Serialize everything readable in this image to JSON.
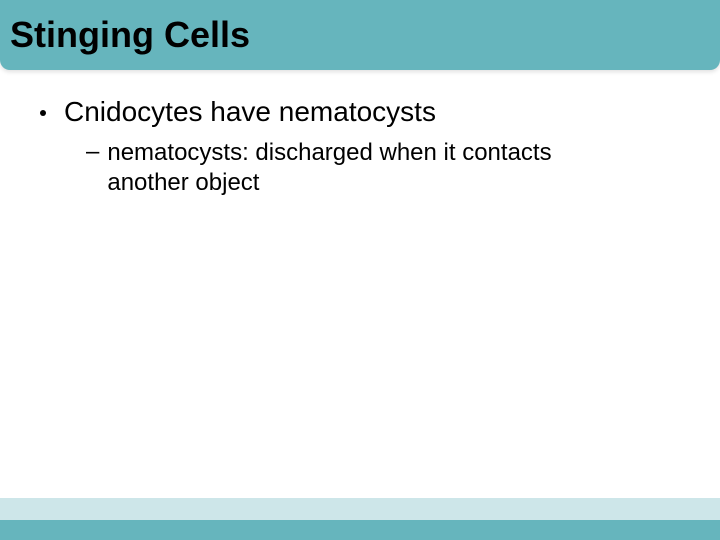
{
  "slide": {
    "title": "Stinging Cells",
    "title_fontsize": 36,
    "title_fontweight": "bold",
    "title_color": "#000000",
    "title_bar_color": "#66b5bd",
    "background_color": "#ffffff",
    "bullets": [
      {
        "level": 1,
        "text": "Cnidocytes have nematocysts",
        "fontsize": 28,
        "color": "#000000",
        "marker": "dot"
      },
      {
        "level": 2,
        "text": "nematocysts: discharged when it contacts another object",
        "fontsize": 24,
        "color": "#000000",
        "marker": "dash"
      }
    ],
    "footer": {
      "light_band_color": "#cde6e9",
      "light_band_height": 22,
      "dark_band_color": "#66b5bd",
      "dark_band_height": 20
    }
  }
}
